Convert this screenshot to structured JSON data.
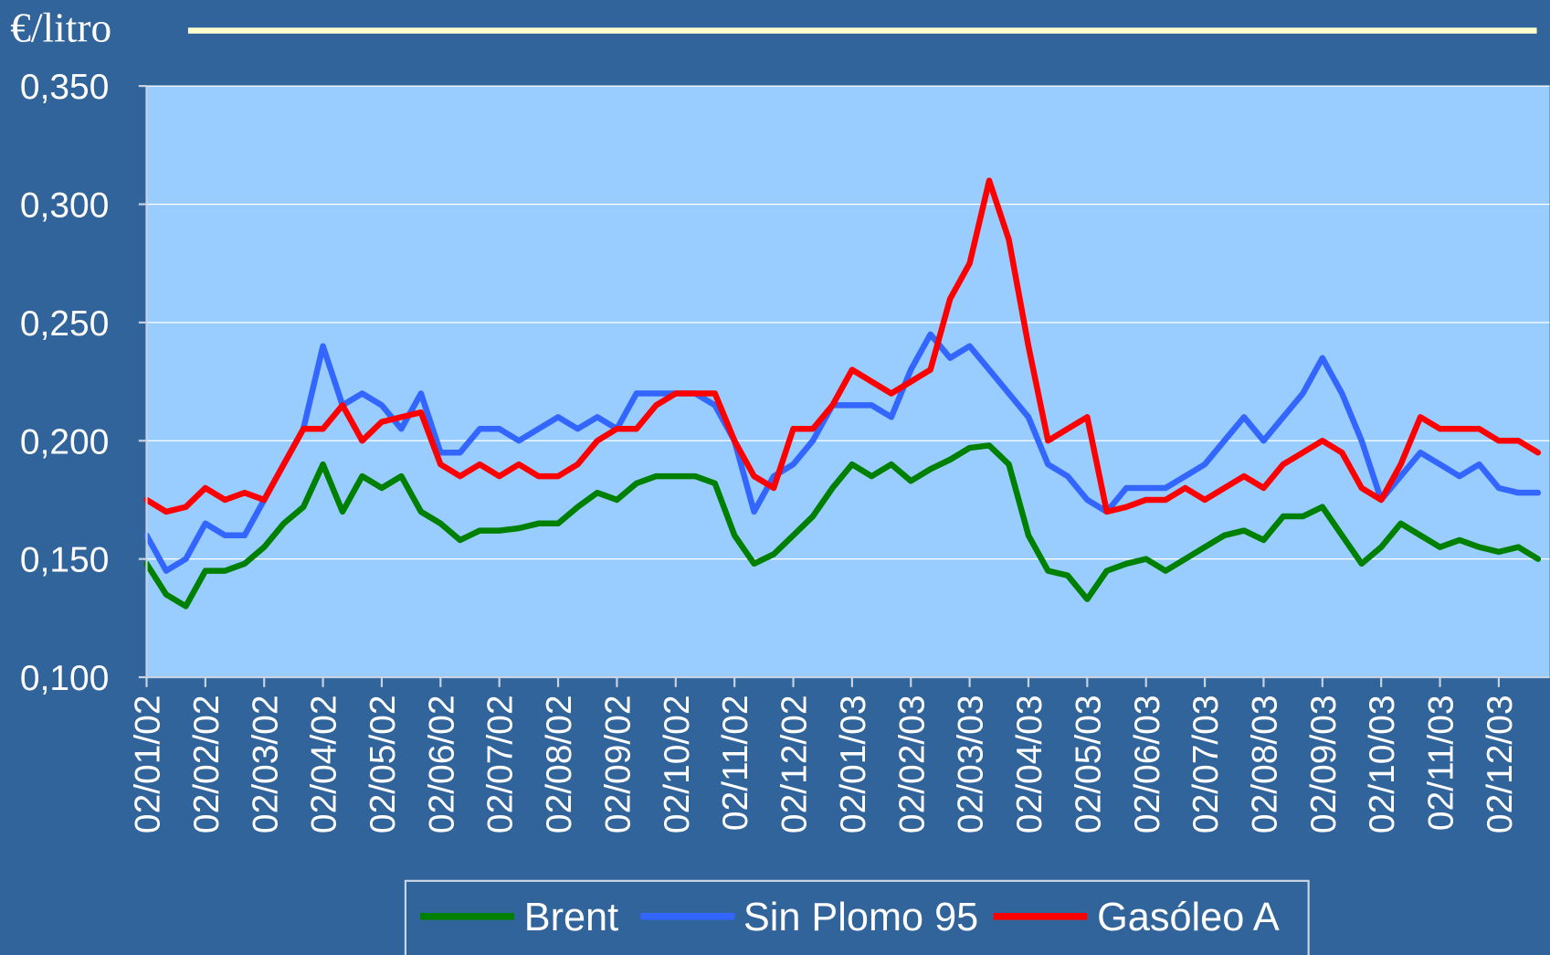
{
  "chart_data": {
    "type": "line",
    "y_label": "€/litro",
    "categories": [
      "02/01/02",
      null,
      null,
      "02/02/02",
      null,
      null,
      "02/03/02",
      null,
      null,
      "02/04/02",
      null,
      null,
      "02/05/02",
      null,
      null,
      "02/06/02",
      null,
      null,
      "02/07/02",
      null,
      null,
      "02/08/02",
      null,
      null,
      "02/09/02",
      null,
      null,
      "02/10/02",
      null,
      null,
      "02/11/02",
      null,
      null,
      "02/12/02",
      null,
      null,
      "02/01/03",
      null,
      null,
      "02/02/03",
      null,
      null,
      "02/03/03",
      null,
      null,
      "02/04/03",
      null,
      null,
      "02/05/03",
      null,
      null,
      "02/06/03",
      null,
      null,
      "02/07/03",
      null,
      null,
      "02/08/03",
      null,
      null,
      "02/09/03",
      null,
      null,
      "02/10/03",
      null,
      null,
      "02/11/03",
      null,
      null,
      "02/12/03",
      null,
      null
    ],
    "series": [
      {
        "name": "Brent",
        "color": "#008000",
        "values": [
          0.148,
          0.135,
          0.13,
          0.145,
          0.145,
          0.148,
          0.155,
          0.165,
          0.172,
          0.19,
          0.17,
          0.185,
          0.18,
          0.185,
          0.17,
          0.165,
          0.158,
          0.162,
          0.162,
          0.163,
          0.165,
          0.165,
          0.172,
          0.178,
          0.175,
          0.182,
          0.185,
          0.185,
          0.185,
          0.182,
          0.16,
          0.148,
          0.152,
          0.16,
          0.168,
          0.18,
          0.19,
          0.185,
          0.19,
          0.183,
          0.188,
          0.192,
          0.197,
          0.198,
          0.19,
          0.16,
          0.145,
          0.143,
          0.133,
          0.145,
          0.148,
          0.15,
          0.145,
          0.15,
          0.155,
          0.16,
          0.162,
          0.158,
          0.168,
          0.168,
          0.172,
          0.16,
          0.148,
          0.155,
          0.165,
          0.16,
          0.155,
          0.158,
          0.155,
          0.153,
          0.155,
          0.15
        ]
      },
      {
        "name": "Sin Plomo 95",
        "color": "#3366ff",
        "values": [
          0.16,
          0.145,
          0.15,
          0.165,
          0.16,
          0.16,
          0.175,
          0.19,
          0.205,
          0.24,
          0.215,
          0.22,
          0.215,
          0.205,
          0.22,
          0.195,
          0.195,
          0.205,
          0.205,
          0.2,
          0.205,
          0.21,
          0.205,
          0.21,
          0.205,
          0.22,
          0.22,
          0.22,
          0.22,
          0.215,
          0.2,
          0.17,
          0.185,
          0.19,
          0.2,
          0.215,
          0.215,
          0.215,
          0.21,
          0.23,
          0.245,
          0.235,
          0.24,
          0.23,
          0.22,
          0.21,
          0.19,
          0.185,
          0.175,
          0.17,
          0.18,
          0.18,
          0.18,
          0.185,
          0.19,
          0.2,
          0.21,
          0.2,
          0.21,
          0.22,
          0.235,
          0.22,
          0.2,
          0.175,
          0.185,
          0.195,
          0.19,
          0.185,
          0.19,
          0.18,
          0.178,
          0.178
        ]
      },
      {
        "name": "Gasóleo A",
        "color": "#ff0000",
        "values": [
          0.175,
          0.17,
          0.172,
          0.18,
          0.175,
          0.178,
          0.175,
          0.19,
          0.205,
          0.205,
          0.215,
          0.2,
          0.208,
          0.21,
          0.212,
          0.19,
          0.185,
          0.19,
          0.185,
          0.19,
          0.185,
          0.185,
          0.19,
          0.2,
          0.205,
          0.205,
          0.215,
          0.22,
          0.22,
          0.22,
          0.2,
          0.185,
          0.18,
          0.205,
          0.205,
          0.215,
          0.23,
          0.225,
          0.22,
          0.225,
          0.23,
          0.26,
          0.275,
          0.31,
          0.285,
          0.24,
          0.2,
          0.205,
          0.21,
          0.17,
          0.172,
          0.175,
          0.175,
          0.18,
          0.175,
          0.18,
          0.185,
          0.18,
          0.19,
          0.195,
          0.2,
          0.195,
          0.18,
          0.175,
          0.19,
          0.21,
          0.205,
          0.205,
          0.205,
          0.2,
          0.2,
          0.195
        ]
      }
    ],
    "ylim": [
      0.1,
      0.35
    ],
    "yticks": [
      {
        "value": 0.1,
        "label": "0,100"
      },
      {
        "value": 0.15,
        "label": "0,150"
      },
      {
        "value": 0.2,
        "label": "0,200"
      },
      {
        "value": 0.25,
        "label": "0,250"
      },
      {
        "value": 0.3,
        "label": "0,300"
      },
      {
        "value": 0.35,
        "label": "0,350"
      }
    ],
    "grid": true,
    "legend": "bottom"
  }
}
